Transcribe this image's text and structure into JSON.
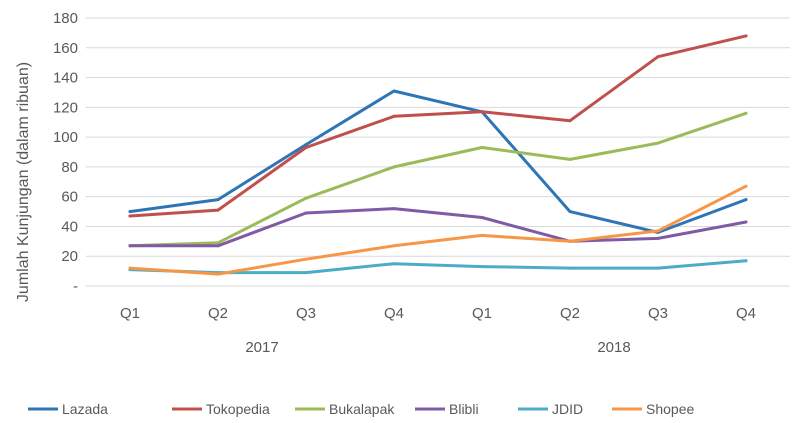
{
  "chart_data": {
    "type": "line",
    "ylabel": "Jumlah Kunjungan (dalam ribuan)",
    "ylim": [
      0,
      180
    ],
    "yticks": [
      "-",
      "20",
      "40",
      "60",
      "80",
      "100",
      "120",
      "140",
      "160",
      "180"
    ],
    "x_quarters": [
      "Q1",
      "Q2",
      "Q3",
      "Q4",
      "Q1",
      "Q2",
      "Q3",
      "Q4"
    ],
    "x_years": [
      {
        "label": "2017",
        "span": [
          0,
          3
        ]
      },
      {
        "label": "2018",
        "span": [
          4,
          7
        ]
      }
    ],
    "grid": true,
    "legend_position": "bottom",
    "series": [
      {
        "name": "Lazada",
        "color": "#2E75B6",
        "values": [
          50,
          58,
          95,
          131,
          117,
          50,
          36,
          58
        ]
      },
      {
        "name": "Tokopedia",
        "color": "#C0504D",
        "values": [
          47,
          51,
          93,
          114,
          117,
          111,
          154,
          168
        ]
      },
      {
        "name": "Bukalapak",
        "color": "#9BBB59",
        "values": [
          27,
          29,
          59,
          80,
          93,
          85,
          96,
          116
        ]
      },
      {
        "name": "Blibli",
        "color": "#7F5BA6",
        "values": [
          27,
          27,
          49,
          52,
          46,
          30,
          32,
          43
        ]
      },
      {
        "name": "JDID",
        "color": "#4BACC6",
        "values": [
          11,
          9,
          9,
          15,
          13,
          12,
          12,
          17
        ]
      },
      {
        "name": "Shopee",
        "color": "#F79646",
        "values": [
          12,
          8,
          18,
          27,
          34,
          30,
          37,
          67
        ]
      }
    ]
  }
}
